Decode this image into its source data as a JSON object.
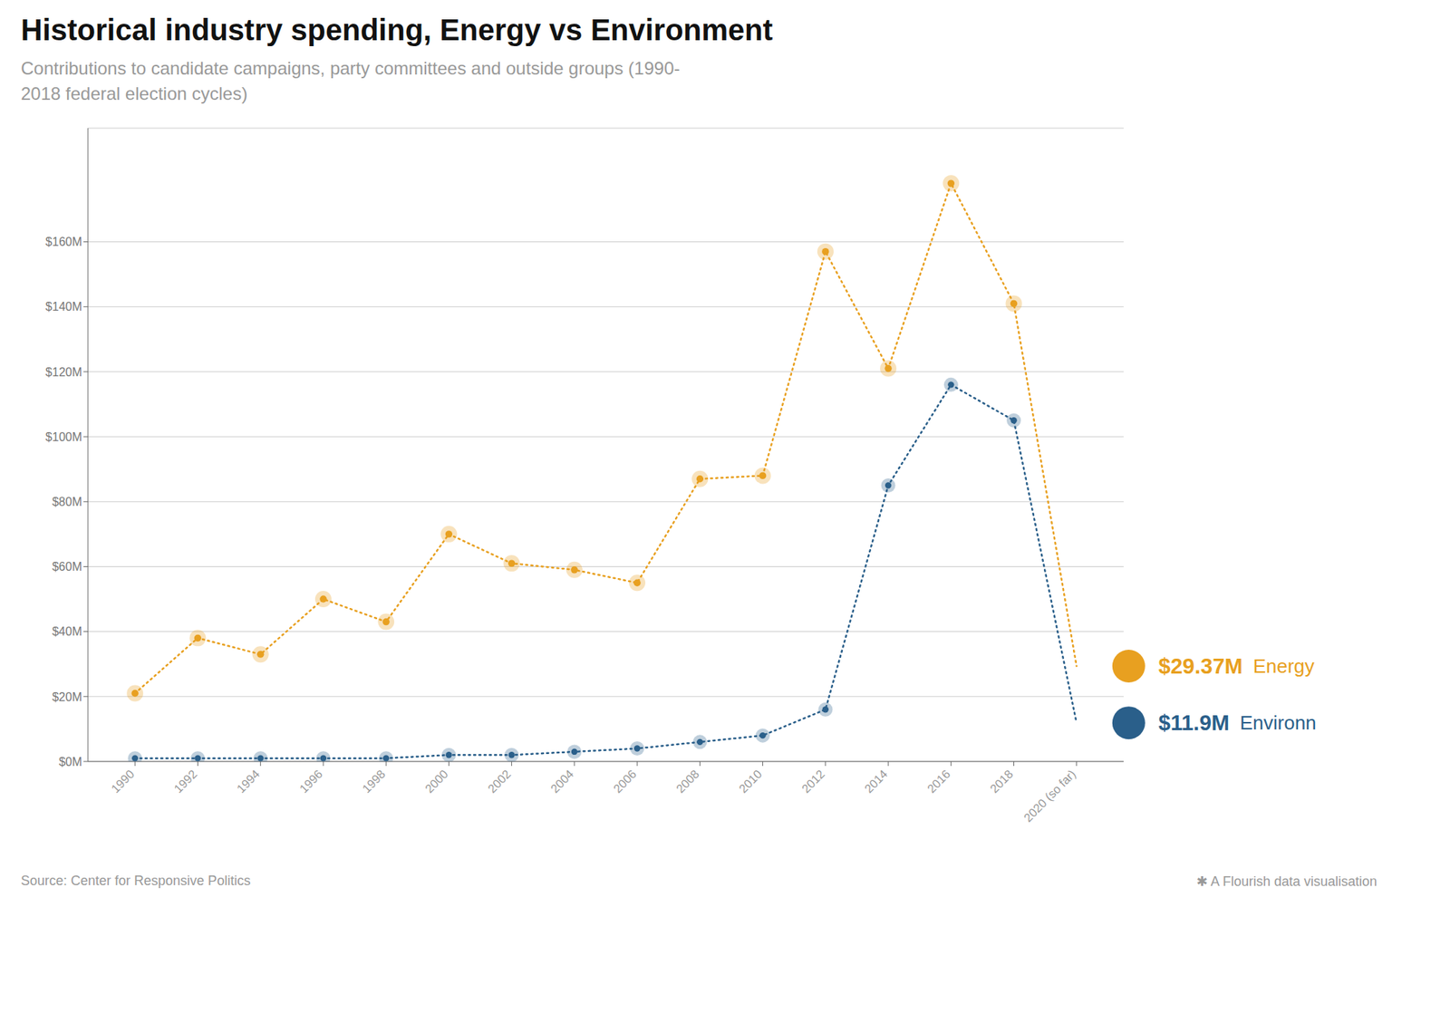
{
  "chart_data": {
    "type": "line",
    "title": "Historical industry spending, Energy vs Environment",
    "subtitle": "Contributions to candidate campaigns, party committees and outside groups (1990-\n2018 federal election cycles)",
    "source": "Source: Center for Responsive Politics",
    "credit": "✱ A Flourish data visualisation",
    "x": [
      1990,
      1992,
      1994,
      1996,
      1998,
      2000,
      2002,
      2004,
      2006,
      2008,
      2010,
      2012,
      2014,
      2016,
      2018,
      2020
    ],
    "series": [
      {
        "name": "Energy",
        "color": "#E8A020",
        "values": [
          21,
          38,
          33,
          50,
          43,
          70,
          61,
          59,
          55,
          87,
          88,
          157,
          121,
          178,
          141,
          29.37
        ]
      },
      {
        "name": "Environn",
        "color": "#2A5F8A",
        "values": [
          1,
          1,
          1,
          1,
          1,
          2,
          2,
          3,
          4,
          6,
          8,
          16,
          85,
          116,
          105,
          11.9
        ]
      }
    ],
    "annotations": [
      {
        "text": "$29.37M",
        "x": 2020,
        "y": 29.37
      },
      {
        "text": "$11.9M",
        "x": 2020,
        "y": 11.9
      }
    ],
    "xlim": [
      1988.5,
      2021.5
    ],
    "xticks": [
      1990,
      1992,
      1994,
      1996,
      1998,
      2000,
      2002,
      2004,
      2006,
      2008,
      2010,
      2012,
      2014,
      2016,
      2018,
      {
        "value": 2020,
        "label": "2020 (so far)"
      }
    ],
    "ylim": [
      0,
      195
    ],
    "yticks": [
      {
        "value": 0,
        "label": "$0M"
      },
      {
        "value": 20,
        "label": "$20M"
      },
      {
        "value": 40,
        "label": "$40M"
      },
      {
        "value": 60,
        "label": "$60M"
      },
      {
        "value": 80,
        "label": "$80M"
      },
      {
        "value": 100,
        "label": "$100M"
      },
      {
        "value": 120,
        "label": "$120M"
      },
      {
        "value": 140,
        "label": "$140M"
      },
      {
        "value": 160,
        "label": "$160M"
      }
    ],
    "grid": "y",
    "legend": "right",
    "marker": "circle",
    "line_style": "dotted"
  }
}
